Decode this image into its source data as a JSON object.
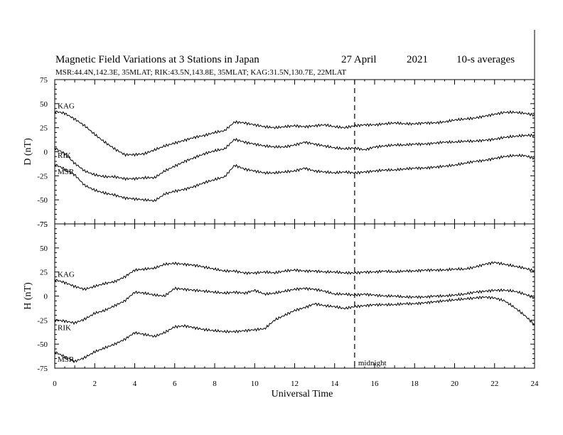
{
  "header": {
    "title": "Magnetic Field Variations at 3 Stations in Japan",
    "date": "27 April",
    "year": "2021",
    "averaging": "10-s averages",
    "stations_line": "MSR:44.4N,142.3E, 35MLAT;  RIK:43.5N,143.8E, 35MLAT;  KAG:31.5N,130.7E, 22MLAT"
  },
  "chart_data": [
    {
      "type": "line",
      "panel": "top",
      "ylabel": "D (nT)",
      "ylim": [
        -75,
        75
      ],
      "yticks": [
        75,
        50,
        25,
        0,
        -25,
        -50,
        -75
      ],
      "xlim": [
        0,
        24
      ],
      "series": [
        {
          "name": "KAG",
          "x": [
            0,
            0.5,
            1,
            1.5,
            2,
            2.5,
            3,
            3.5,
            4,
            4.5,
            5,
            5.5,
            6,
            6.5,
            7,
            7.5,
            8,
            8.5,
            9,
            9.5,
            10,
            10.5,
            11,
            11.5,
            12,
            12.5,
            13,
            13.5,
            14,
            14.5,
            15,
            15.5,
            16,
            16.5,
            17,
            17.5,
            18,
            18.5,
            19,
            19.5,
            20,
            20.5,
            21,
            21.5,
            22,
            22.5,
            23,
            23.5,
            24
          ],
          "y": [
            42,
            40,
            34,
            27,
            18,
            10,
            3,
            -3,
            -3,
            -2,
            2,
            6,
            9,
            12,
            15,
            17,
            20,
            22,
            31,
            30,
            28,
            26,
            25,
            26,
            27,
            26,
            27,
            28,
            26,
            25,
            27,
            28,
            28,
            29,
            30,
            29,
            29,
            30,
            30,
            31,
            33,
            34,
            35,
            37,
            39,
            41,
            41,
            40,
            38
          ]
        },
        {
          "name": "RIK",
          "x": [
            0,
            0.5,
            1,
            1.5,
            2,
            2.5,
            3,
            3.5,
            4,
            4.5,
            5,
            5.5,
            6,
            6.5,
            7,
            7.5,
            8,
            8.5,
            9,
            9.5,
            10,
            10.5,
            11,
            11.5,
            12,
            12.5,
            13,
            13.5,
            14,
            14.5,
            15,
            15.5,
            16,
            16.5,
            17,
            17.5,
            18,
            18.5,
            19,
            19.5,
            20,
            20.5,
            21,
            21.5,
            22,
            22.5,
            23,
            23.5,
            24
          ],
          "y": [
            4,
            -2,
            -12,
            -20,
            -24,
            -26,
            -26,
            -28,
            -28,
            -27,
            -27,
            -20,
            -15,
            -10,
            -6,
            -2,
            1,
            3,
            13,
            10,
            8,
            6,
            5,
            5,
            7,
            10,
            8,
            6,
            4,
            3,
            4,
            2,
            5,
            6,
            7,
            7,
            8,
            8,
            9,
            10,
            10,
            11,
            11,
            12,
            13,
            15,
            16,
            17,
            17
          ]
        },
        {
          "name": "MSR",
          "x": [
            0,
            0.5,
            1,
            1.5,
            2,
            2.5,
            3,
            3.5,
            4,
            4.5,
            5,
            5.5,
            6,
            6.5,
            7,
            7.5,
            8,
            8.5,
            9,
            9.5,
            10,
            10.5,
            11,
            11.5,
            12,
            12.5,
            13,
            13.5,
            14,
            14.5,
            15,
            15.5,
            16,
            16.5,
            17,
            17.5,
            18,
            18.5,
            19,
            19.5,
            20,
            20.5,
            21,
            21.5,
            22,
            22.5,
            23,
            23.5,
            24
          ],
          "y": [
            -13,
            -18,
            -24,
            -35,
            -40,
            -43,
            -45,
            -48,
            -49,
            -50,
            -51,
            -44,
            -41,
            -39,
            -36,
            -32,
            -29,
            -26,
            -14,
            -18,
            -20,
            -22,
            -22,
            -21,
            -20,
            -17,
            -20,
            -21,
            -22,
            -21,
            -22,
            -21,
            -20,
            -19,
            -19,
            -18,
            -17,
            -17,
            -16,
            -15,
            -14,
            -12,
            -10,
            -9,
            -7,
            -5,
            -4,
            -4,
            -7
          ]
        }
      ]
    },
    {
      "type": "line",
      "panel": "bottom",
      "ylabel": "H (nT)",
      "xlabel": "Universal Time",
      "ylim": [
        -75,
        75
      ],
      "yticks": [
        75,
        50,
        25,
        0,
        -25,
        -50,
        -75
      ],
      "xlim": [
        0,
        24
      ],
      "xticks": [
        0,
        2,
        4,
        6,
        8,
        10,
        12,
        14,
        16,
        18,
        20,
        22,
        24
      ],
      "series": [
        {
          "name": "KAG",
          "x": [
            0,
            0.5,
            1,
            1.5,
            2,
            2.5,
            3,
            3.5,
            4,
            4.5,
            5,
            5.5,
            6,
            6.5,
            7,
            7.5,
            8,
            8.5,
            9,
            9.5,
            10,
            10.5,
            11,
            11.5,
            12,
            12.5,
            13,
            13.5,
            14,
            14.5,
            15,
            15.5,
            16,
            16.5,
            17,
            17.5,
            18,
            18.5,
            19,
            19.5,
            20,
            20.5,
            21,
            21.5,
            22,
            22.5,
            23,
            23.5,
            24
          ],
          "y": [
            17,
            14,
            10,
            7,
            10,
            13,
            15,
            20,
            27,
            28,
            29,
            33,
            34,
            33,
            32,
            30,
            28,
            26,
            26,
            24,
            24,
            25,
            24,
            26,
            27,
            26,
            26,
            25,
            25,
            24,
            24,
            25,
            25,
            26,
            25,
            26,
            26,
            27,
            27,
            27,
            28,
            28,
            30,
            33,
            35,
            33,
            31,
            29,
            26
          ]
        },
        {
          "name": "RIK",
          "x": [
            0,
            0.5,
            1,
            1.5,
            2,
            2.5,
            3,
            3.5,
            4,
            4.5,
            5,
            5.5,
            6,
            6.5,
            7,
            7.5,
            8,
            8.5,
            9,
            9.5,
            10,
            10.5,
            11,
            11.5,
            12,
            12.5,
            13,
            13.5,
            14,
            14.5,
            15,
            15.5,
            16,
            16.5,
            17,
            17.5,
            18,
            18.5,
            19,
            19.5,
            20,
            20.5,
            21,
            21.5,
            22,
            22.5,
            23,
            23.5,
            24
          ],
          "y": [
            -25,
            -26,
            -28,
            -24,
            -18,
            -15,
            -10,
            -5,
            4,
            3,
            1,
            0,
            8,
            7,
            6,
            5,
            4,
            3,
            4,
            3,
            6,
            2,
            3,
            5,
            7,
            8,
            7,
            5,
            2,
            2,
            1,
            2,
            1,
            0,
            0,
            -1,
            -1,
            -1,
            0,
            0,
            1,
            2,
            4,
            5,
            6,
            6,
            5,
            2,
            -2
          ]
        },
        {
          "name": "MSR",
          "x": [
            0,
            0.5,
            1,
            1.5,
            2,
            2.5,
            3,
            3.5,
            4,
            4.5,
            5,
            5.5,
            6,
            6.5,
            7,
            7.5,
            8,
            8.5,
            9,
            9.5,
            10,
            10.5,
            11,
            11.5,
            12,
            12.5,
            13,
            13.5,
            14,
            14.5,
            15,
            15.5,
            16,
            16.5,
            17,
            17.5,
            18,
            18.5,
            19,
            19.5,
            20,
            20.5,
            21,
            21.5,
            22,
            22.5,
            23,
            23.5,
            24
          ],
          "y": [
            -58,
            -63,
            -68,
            -64,
            -58,
            -54,
            -50,
            -45,
            -38,
            -40,
            -42,
            -38,
            -32,
            -31,
            -33,
            -35,
            -36,
            -37,
            -37,
            -36,
            -35,
            -34,
            -25,
            -20,
            -15,
            -12,
            -8,
            -10,
            -11,
            -13,
            -11,
            -10,
            -9,
            -9,
            -9,
            -8,
            -8,
            -7,
            -6,
            -5,
            -4,
            -3,
            -2,
            -1,
            -2,
            -5,
            -12,
            -20,
            -30
          ]
        }
      ]
    }
  ],
  "annotation": {
    "midnight_label": "midnight",
    "midnight_x": 15
  }
}
